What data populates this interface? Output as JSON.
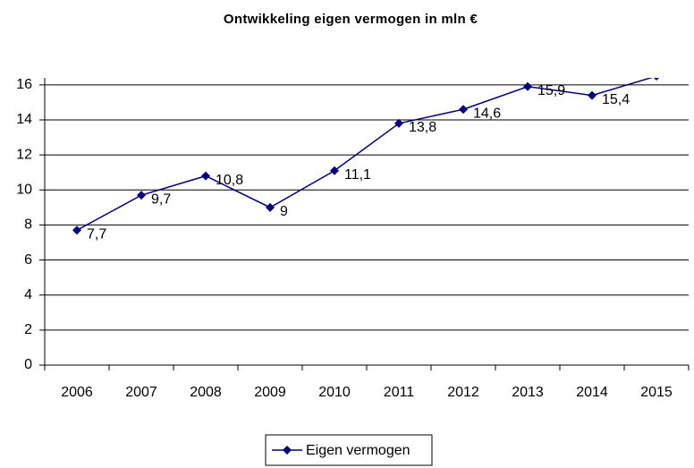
{
  "chart_data": {
    "type": "line",
    "title": "Ontwikkeling eigen vermogen in mln €",
    "categories": [
      "2006",
      "2007",
      "2008",
      "2009",
      "2010",
      "2011",
      "2012",
      "2013",
      "2014",
      "2015"
    ],
    "series": [
      {
        "name": "Eigen vermogen",
        "color": "#000080",
        "values": [
          7.7,
          9.7,
          10.8,
          9,
          11.1,
          13.8,
          14.6,
          15.9,
          15.4,
          16.5
        ],
        "value_labels": [
          "7,7",
          "9,7",
          "10,8",
          "9",
          "11,1",
          "13,8",
          "14,6",
          "15,9",
          "15,4",
          null
        ]
      }
    ],
    "ylim": [
      0,
      16.4
    ],
    "yticks": [
      0,
      2,
      4,
      6,
      8,
      10,
      12,
      14,
      16
    ],
    "grid": true,
    "legend": "bottom"
  }
}
